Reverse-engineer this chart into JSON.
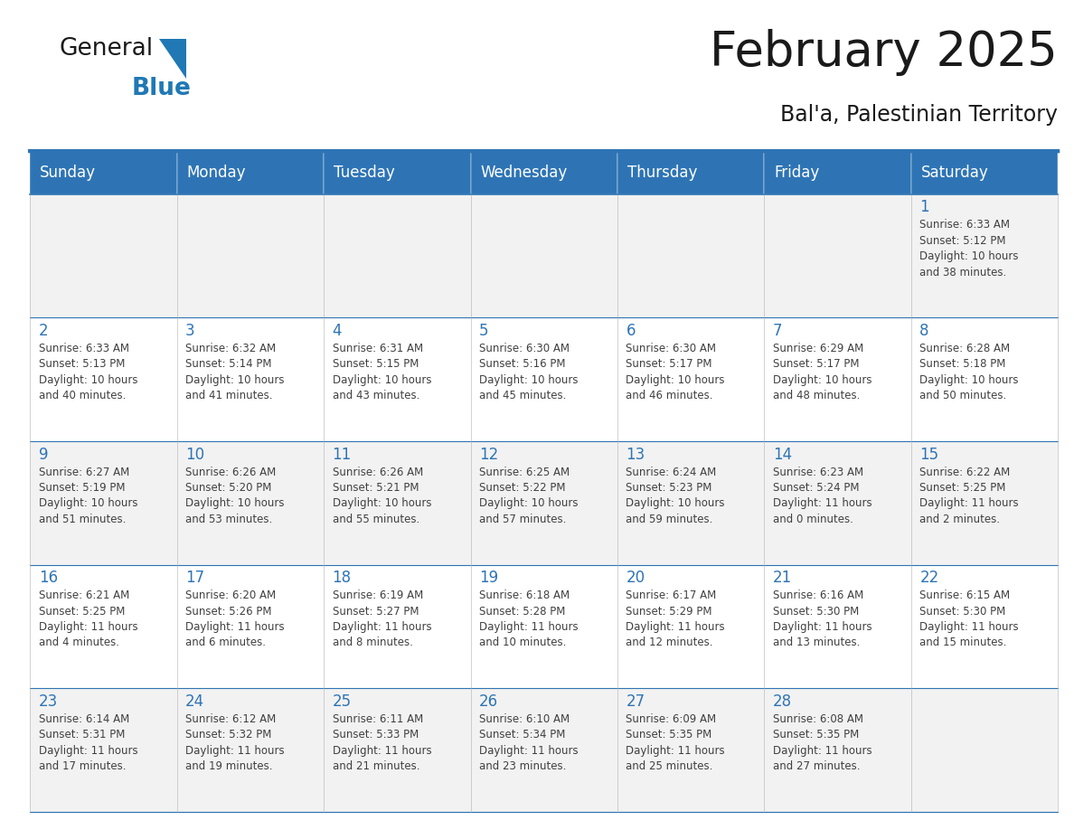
{
  "title": "February 2025",
  "subtitle": "Bal'a, Palestinian Territory",
  "days_of_week": [
    "Sunday",
    "Monday",
    "Tuesday",
    "Wednesday",
    "Thursday",
    "Friday",
    "Saturday"
  ],
  "header_bg": "#2E74B5",
  "header_text_color": "#FFFFFF",
  "cell_bg_even": "#F2F2F2",
  "cell_bg_odd": "#FFFFFF",
  "cell_border_color": "#2E74B5",
  "day_number_color": "#2E74B5",
  "info_text_color": "#404040",
  "background_color": "#FFFFFF",
  "calendar_data": [
    {
      "day": 1,
      "col": 6,
      "row": 0,
      "sunrise": "6:33 AM",
      "sunset": "5:12 PM",
      "daylight": "10 hours and 38 minutes."
    },
    {
      "day": 2,
      "col": 0,
      "row": 1,
      "sunrise": "6:33 AM",
      "sunset": "5:13 PM",
      "daylight": "10 hours and 40 minutes."
    },
    {
      "day": 3,
      "col": 1,
      "row": 1,
      "sunrise": "6:32 AM",
      "sunset": "5:14 PM",
      "daylight": "10 hours and 41 minutes."
    },
    {
      "day": 4,
      "col": 2,
      "row": 1,
      "sunrise": "6:31 AM",
      "sunset": "5:15 PM",
      "daylight": "10 hours and 43 minutes."
    },
    {
      "day": 5,
      "col": 3,
      "row": 1,
      "sunrise": "6:30 AM",
      "sunset": "5:16 PM",
      "daylight": "10 hours and 45 minutes."
    },
    {
      "day": 6,
      "col": 4,
      "row": 1,
      "sunrise": "6:30 AM",
      "sunset": "5:17 PM",
      "daylight": "10 hours and 46 minutes."
    },
    {
      "day": 7,
      "col": 5,
      "row": 1,
      "sunrise": "6:29 AM",
      "sunset": "5:17 PM",
      "daylight": "10 hours and 48 minutes."
    },
    {
      "day": 8,
      "col": 6,
      "row": 1,
      "sunrise": "6:28 AM",
      "sunset": "5:18 PM",
      "daylight": "10 hours and 50 minutes."
    },
    {
      "day": 9,
      "col": 0,
      "row": 2,
      "sunrise": "6:27 AM",
      "sunset": "5:19 PM",
      "daylight": "10 hours and 51 minutes."
    },
    {
      "day": 10,
      "col": 1,
      "row": 2,
      "sunrise": "6:26 AM",
      "sunset": "5:20 PM",
      "daylight": "10 hours and 53 minutes."
    },
    {
      "day": 11,
      "col": 2,
      "row": 2,
      "sunrise": "6:26 AM",
      "sunset": "5:21 PM",
      "daylight": "10 hours and 55 minutes."
    },
    {
      "day": 12,
      "col": 3,
      "row": 2,
      "sunrise": "6:25 AM",
      "sunset": "5:22 PM",
      "daylight": "10 hours and 57 minutes."
    },
    {
      "day": 13,
      "col": 4,
      "row": 2,
      "sunrise": "6:24 AM",
      "sunset": "5:23 PM",
      "daylight": "10 hours and 59 minutes."
    },
    {
      "day": 14,
      "col": 5,
      "row": 2,
      "sunrise": "6:23 AM",
      "sunset": "5:24 PM",
      "daylight": "11 hours and 0 minutes."
    },
    {
      "day": 15,
      "col": 6,
      "row": 2,
      "sunrise": "6:22 AM",
      "sunset": "5:25 PM",
      "daylight": "11 hours and 2 minutes."
    },
    {
      "day": 16,
      "col": 0,
      "row": 3,
      "sunrise": "6:21 AM",
      "sunset": "5:25 PM",
      "daylight": "11 hours and 4 minutes."
    },
    {
      "day": 17,
      "col": 1,
      "row": 3,
      "sunrise": "6:20 AM",
      "sunset": "5:26 PM",
      "daylight": "11 hours and 6 minutes."
    },
    {
      "day": 18,
      "col": 2,
      "row": 3,
      "sunrise": "6:19 AM",
      "sunset": "5:27 PM",
      "daylight": "11 hours and 8 minutes."
    },
    {
      "day": 19,
      "col": 3,
      "row": 3,
      "sunrise": "6:18 AM",
      "sunset": "5:28 PM",
      "daylight": "11 hours and 10 minutes."
    },
    {
      "day": 20,
      "col": 4,
      "row": 3,
      "sunrise": "6:17 AM",
      "sunset": "5:29 PM",
      "daylight": "11 hours and 12 minutes."
    },
    {
      "day": 21,
      "col": 5,
      "row": 3,
      "sunrise": "6:16 AM",
      "sunset": "5:30 PM",
      "daylight": "11 hours and 13 minutes."
    },
    {
      "day": 22,
      "col": 6,
      "row": 3,
      "sunrise": "6:15 AM",
      "sunset": "5:30 PM",
      "daylight": "11 hours and 15 minutes."
    },
    {
      "day": 23,
      "col": 0,
      "row": 4,
      "sunrise": "6:14 AM",
      "sunset": "5:31 PM",
      "daylight": "11 hours and 17 minutes."
    },
    {
      "day": 24,
      "col": 1,
      "row": 4,
      "sunrise": "6:12 AM",
      "sunset": "5:32 PM",
      "daylight": "11 hours and 19 minutes."
    },
    {
      "day": 25,
      "col": 2,
      "row": 4,
      "sunrise": "6:11 AM",
      "sunset": "5:33 PM",
      "daylight": "11 hours and 21 minutes."
    },
    {
      "day": 26,
      "col": 3,
      "row": 4,
      "sunrise": "6:10 AM",
      "sunset": "5:34 PM",
      "daylight": "11 hours and 23 minutes."
    },
    {
      "day": 27,
      "col": 4,
      "row": 4,
      "sunrise": "6:09 AM",
      "sunset": "5:35 PM",
      "daylight": "11 hours and 25 minutes."
    },
    {
      "day": 28,
      "col": 5,
      "row": 4,
      "sunrise": "6:08 AM",
      "sunset": "5:35 PM",
      "daylight": "11 hours and 27 minutes."
    }
  ],
  "num_rows": 5,
  "num_cols": 7,
  "logo_text_general": "General",
  "logo_text_blue": "Blue",
  "logo_text_color_general": "#1a1a1a",
  "logo_text_color_blue": "#2078b4",
  "logo_triangle_color": "#2078b4",
  "title_fontsize": 38,
  "subtitle_fontsize": 17,
  "header_fontsize": 12,
  "day_num_fontsize": 12,
  "info_fontsize": 8.5
}
